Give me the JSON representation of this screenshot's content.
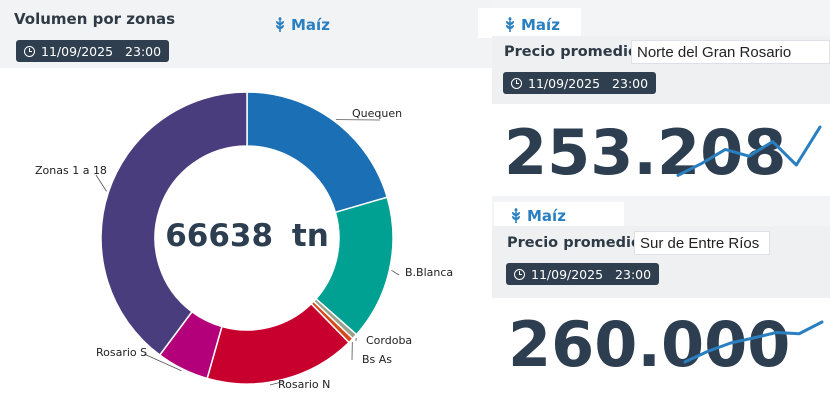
{
  "left": {
    "title": "Volumen por zonas",
    "crop": "Maíz",
    "date": "11/09/2025",
    "time": "23:00",
    "center_value": "66638",
    "center_unit": "tn"
  },
  "cards": [
    {
      "crop": "Maíz",
      "label": "Precio promedio",
      "location": "Norte del Gran Rosario",
      "date": "11/09/2025",
      "time": "23:00",
      "value": "253.208",
      "trend": [
        0.05,
        0.28,
        0.55,
        0.42,
        0.7,
        0.25,
        0.98
      ]
    },
    {
      "crop": "Maíz",
      "label": "Precio promedio",
      "location": "Sur de Entre Ríos",
      "date": "11/09/2025",
      "time": "23:00",
      "value": "260.000",
      "trend": [
        0.05,
        0.3,
        0.5,
        0.62,
        0.75,
        0.72,
        1.0
      ]
    }
  ],
  "colors": {
    "accent": "#2a7fc0",
    "badge": "#2f3f4f",
    "text": "#2c3e50"
  },
  "chart_data": {
    "type": "pie",
    "donut": true,
    "categories": [
      "Quequen",
      "B.Blanca",
      "Cordoba",
      "Bs As",
      "Rosario N",
      "Rosario S",
      "Zonas 1 a 18"
    ],
    "values": [
      0.205,
      0.16,
      0.006,
      0.006,
      0.167,
      0.058,
      0.398
    ],
    "colors": [
      "#1a6fb5",
      "#00a092",
      "#9aa28e",
      "#d7481a",
      "#c8002e",
      "#b3007a",
      "#4a3d7d"
    ]
  }
}
